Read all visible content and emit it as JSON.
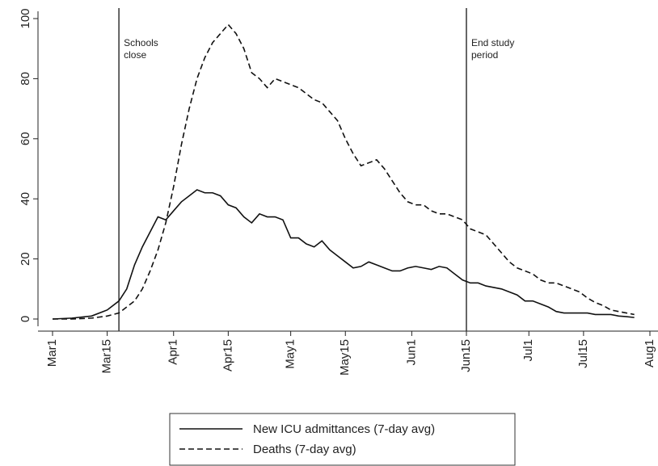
{
  "chart_data": {
    "type": "line",
    "x": [
      0,
      5,
      10,
      14,
      17,
      19,
      21,
      23,
      25,
      27,
      29,
      31,
      33,
      35,
      37,
      39,
      41,
      43,
      45,
      47,
      49,
      51,
      53,
      55,
      57,
      59,
      61,
      63,
      65,
      67,
      69,
      71,
      73,
      75,
      77,
      79,
      81,
      83,
      85,
      87,
      89,
      91,
      93,
      95,
      97,
      99,
      101,
      103,
      105,
      107,
      109,
      111,
      113,
      115,
      117,
      119,
      121,
      123,
      125,
      127,
      129,
      131,
      133,
      135,
      137,
      139,
      141,
      143,
      145,
      147,
      149
    ],
    "series": [
      {
        "name": "New ICU admittances (7-day avg)",
        "color": "#111111",
        "style": "solid",
        "values": [
          0,
          0.3,
          1,
          3,
          6,
          10,
          18,
          24,
          29,
          34,
          33,
          36,
          39,
          41,
          43,
          42,
          42,
          41,
          38,
          37,
          34,
          32,
          35,
          34,
          34,
          33,
          27,
          27,
          25,
          24,
          26,
          23,
          21,
          19,
          17,
          17.5,
          19,
          18,
          17,
          16,
          16,
          17,
          17.5,
          17,
          16.5,
          17.5,
          17,
          15,
          13,
          12,
          12,
          11,
          10.5,
          10,
          9,
          8,
          6,
          6,
          5,
          4,
          2.5,
          2,
          2,
          2,
          2,
          1.5,
          1.5,
          1.5,
          1,
          0.8,
          0.5
        ]
      },
      {
        "name": "Deaths (7-day avg)",
        "color": "#111111",
        "style": "dashed",
        "values": [
          0,
          0,
          0.3,
          1,
          2,
          4,
          6,
          10,
          16,
          23,
          32,
          44,
          58,
          70,
          80,
          87,
          92,
          95,
          98,
          95,
          90,
          82,
          80,
          77,
          80,
          79,
          78,
          77,
          75,
          73,
          72,
          69,
          66,
          60,
          55,
          51,
          52,
          53,
          50,
          46,
          42,
          39,
          38,
          38,
          36,
          35,
          35,
          34,
          33,
          30,
          29,
          28,
          25,
          22,
          19,
          17,
          16,
          15,
          13,
          12,
          12,
          11,
          10,
          9,
          7,
          5.5,
          4.5,
          3,
          2.5,
          2,
          1.5
        ]
      }
    ],
    "xlim": [
      0,
      153
    ],
    "xticks": [
      {
        "value": 0,
        "label": "Mar1"
      },
      {
        "value": 14,
        "label": "Mar15"
      },
      {
        "value": 31,
        "label": "Apr1"
      },
      {
        "value": 45,
        "label": "Apr15"
      },
      {
        "value": 61,
        "label": "May1"
      },
      {
        "value": 75,
        "label": "May15"
      },
      {
        "value": 92,
        "label": "Jun1"
      },
      {
        "value": 106,
        "label": "Jun15"
      },
      {
        "value": 122,
        "label": "Jul1"
      },
      {
        "value": 136,
        "label": "Jul15"
      },
      {
        "value": 153,
        "label": "Aug1"
      }
    ],
    "ylim": [
      0,
      100
    ],
    "yticks": [
      0,
      20,
      40,
      60,
      80,
      100
    ],
    "annotations": [
      {
        "x": 17,
        "lines": [
          "Schools",
          "close"
        ]
      },
      {
        "x": 106,
        "lines": [
          "End study",
          "period"
        ]
      }
    ],
    "legend": "bottom"
  }
}
